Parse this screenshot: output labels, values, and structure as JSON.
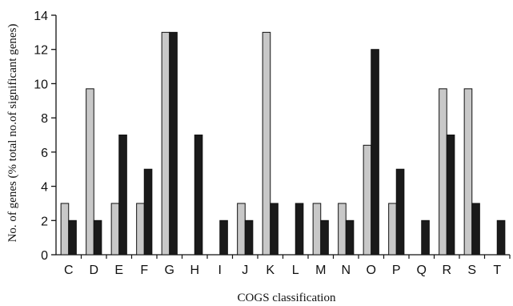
{
  "chart_data": {
    "type": "bar",
    "xlabel": "COGS classification",
    "ylabel": "No. of genes (% total no.of significant genes)",
    "ylim": [
      0,
      14
    ],
    "yticks": [
      0,
      2,
      4,
      6,
      8,
      10,
      12,
      14
    ],
    "grid": false,
    "categories": [
      "C",
      "D",
      "E",
      "F",
      "G",
      "H",
      "I",
      "J",
      "K",
      "L",
      "M",
      "N",
      "O",
      "P",
      "Q",
      "R",
      "S",
      "T"
    ],
    "series": [
      {
        "color": "#c8c8c8",
        "values": [
          3,
          9.7,
          3,
          3,
          13,
          0,
          0,
          3,
          13,
          0,
          3,
          3,
          6.4,
          3,
          0,
          9.7,
          9.7,
          0
        ]
      },
      {
        "color": "#1a1a1a",
        "values": [
          2,
          2,
          7,
          5,
          13,
          7,
          2,
          2,
          3,
          3,
          2,
          2,
          12,
          5,
          2,
          7,
          3,
          2
        ]
      }
    ]
  }
}
